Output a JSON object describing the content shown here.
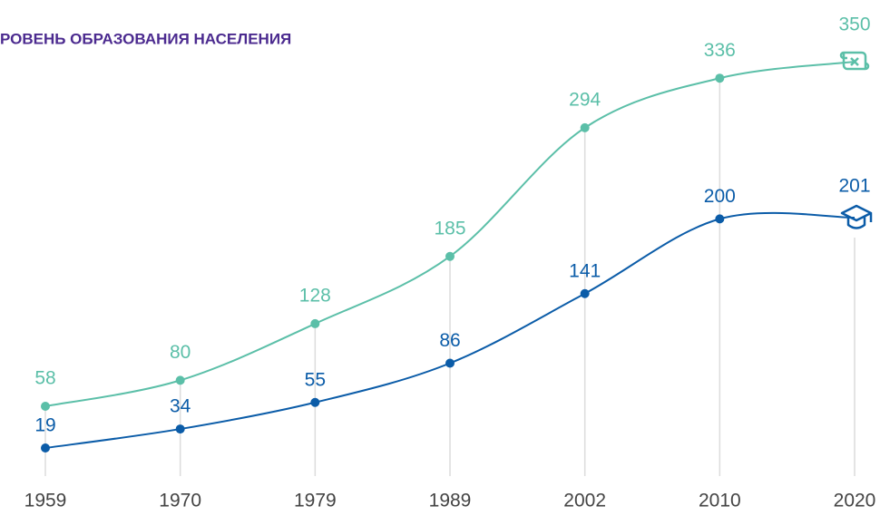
{
  "chart_data": {
    "type": "line",
    "title": "РОВЕНЬ ОБРАЗОВАНИЯ НАСЕЛЕНИЯ",
    "categories": [
      "1959",
      "1970",
      "1979",
      "1989",
      "2002",
      "2010",
      "2020"
    ],
    "series": [
      {
        "color": "#5bbfa8",
        "values": [
          58,
          80,
          128,
          185,
          294,
          336,
          350
        ]
      },
      {
        "color": "#0b5ca8",
        "values": [
          19,
          34,
          55,
          86,
          141,
          200,
          201
        ]
      }
    ]
  }
}
